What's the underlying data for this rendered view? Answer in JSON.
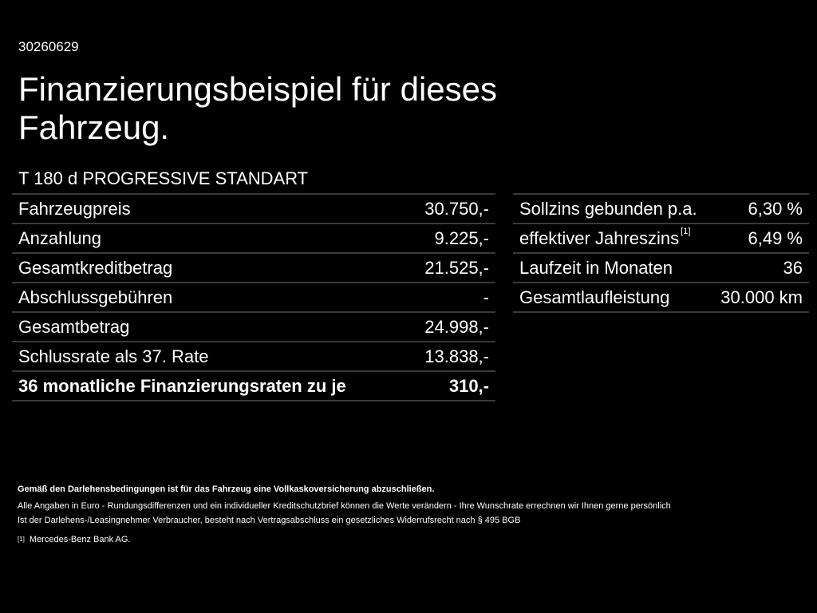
{
  "ref_id": "30260629",
  "headline": "Finanzierungsbeispiel für dieses Fahrzeug.",
  "model": "T 180 d PROGRESSIVE STANDART",
  "left_table": {
    "rows": [
      {
        "label": "Fahrzeugpreis",
        "value": "30.750,-"
      },
      {
        "label": "Anzahlung",
        "value": "9.225,-"
      },
      {
        "label": "Gesamtkreditbetrag",
        "value": "21.525,-"
      },
      {
        "label": "Abschlussgebühren",
        "value": "-"
      },
      {
        "label": "Gesamtbetrag",
        "value": "24.998,-"
      },
      {
        "label": "Schlussrate als 37. Rate",
        "value": "13.838,-"
      },
      {
        "label": "36 monatliche Finanzierungsraten zu je",
        "value": "310,-"
      }
    ]
  },
  "right_table": {
    "rows": [
      {
        "label": "Sollzins gebunden p.a.",
        "value": "6,30 %"
      },
      {
        "label": "effektiver Jahreszins",
        "ref": "[1]",
        "value": "6,49 %"
      },
      {
        "label": "Laufzeit in Monaten",
        "value": "36"
      },
      {
        "label": "Gesamtlaufleistung",
        "value": "30.000 km"
      }
    ]
  },
  "notes": {
    "line1": "Gemäß den Darlehensbedingungen ist für das Fahrzeug eine Vollkaskoversicherung abzuschließen.",
    "line2": "Alle Angaben in Euro - Rundungsdifferenzen und ein individueller Kreditschutzbrief können die Werte verändern - Ihre Wunschrate errechnen wir Ihnen gerne persönlich",
    "line3": "Ist der Darlehens-/Leasingnehmer Verbraucher, besteht nach Vertragsabschluss ein gesetzliches Widerrufsrecht nach § 495 BGB",
    "footnote_mark": "[1]",
    "footnote_text": "Mercedes-Benz Bank AG."
  }
}
